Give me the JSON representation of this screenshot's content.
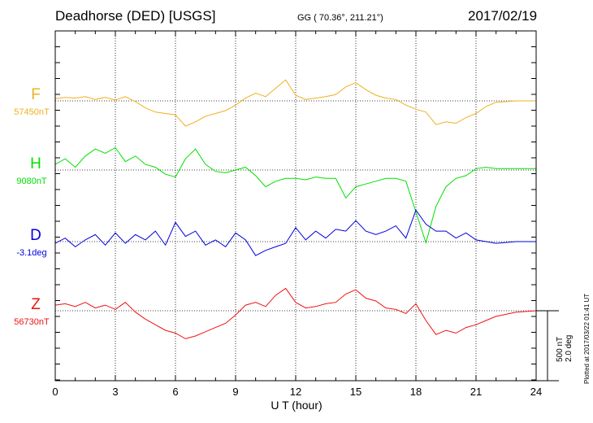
{
  "header": {
    "station": "Deadhorse (DED)  [USGS]",
    "coords": "GG ( 70.36°, 211.21°)",
    "date": "2017/02/19"
  },
  "footer": {
    "scale_nt": "500 nT",
    "scale_deg": "2.0 deg",
    "plotted": "Plotted at 2017/03/22 01:41 UT"
  },
  "chart_data": {
    "type": "line",
    "xlabel": "U T (hour)",
    "xlim": [
      0,
      24
    ],
    "xticks": [
      0,
      3,
      6,
      9,
      12,
      15,
      18,
      21,
      24
    ],
    "grid": true,
    "panels": [
      {
        "name": "F",
        "baseline": "57450nT",
        "color": "#f0b020",
        "x": [
          0,
          0.5,
          1,
          1.5,
          2,
          2.5,
          3,
          3.5,
          4,
          4.5,
          5,
          5.5,
          6,
          6.5,
          7,
          7.5,
          8,
          8.5,
          9,
          9.5,
          10,
          10.5,
          11,
          11.5,
          12,
          12.5,
          13,
          13.5,
          14,
          14.5,
          15,
          15.5,
          16,
          16.5,
          17,
          17.5,
          18,
          18.5,
          19,
          19.5,
          20,
          20.5,
          21,
          21.5,
          22,
          23,
          24
        ],
        "values": [
          15,
          25,
          20,
          30,
          10,
          25,
          5,
          30,
          -5,
          -50,
          -80,
          -90,
          -100,
          -180,
          -150,
          -110,
          -90,
          -70,
          -30,
          20,
          55,
          30,
          90,
          150,
          40,
          10,
          20,
          30,
          45,
          100,
          130,
          80,
          40,
          20,
          10,
          -30,
          -60,
          -80,
          -170,
          -150,
          -160,
          -120,
          -90,
          -40,
          -10,
          0,
          0
        ]
      },
      {
        "name": "H",
        "baseline": "9080nT",
        "color": "#00e000",
        "x": [
          0,
          0.5,
          1,
          1.5,
          2,
          2.5,
          3,
          3.5,
          4,
          4.5,
          5,
          5.5,
          6,
          6.5,
          7,
          7.5,
          8,
          8.5,
          9,
          9.5,
          10,
          10.5,
          11,
          11.5,
          12,
          12.5,
          13,
          13.5,
          14,
          14.5,
          15,
          15.5,
          16,
          16.5,
          17,
          17.5,
          18,
          18.5,
          19,
          19.5,
          20,
          20.5,
          21,
          21.5,
          22,
          23,
          24
        ],
        "values": [
          40,
          80,
          20,
          100,
          150,
          120,
          160,
          60,
          100,
          40,
          20,
          -30,
          -50,
          80,
          150,
          40,
          -10,
          -20,
          0,
          20,
          -40,
          -120,
          -80,
          -60,
          -60,
          -70,
          -50,
          -60,
          -60,
          -200,
          -120,
          -100,
          -80,
          -60,
          -60,
          -80,
          -300,
          -520,
          -260,
          -120,
          -60,
          -40,
          10,
          20,
          10,
          10,
          10
        ]
      },
      {
        "name": "D",
        "baseline": "-3.1deg",
        "color": "#0000dd",
        "x": [
          0,
          0.5,
          1,
          1.5,
          2,
          2.5,
          3,
          3.5,
          4,
          4.5,
          5,
          5.5,
          6,
          6.5,
          7,
          7.5,
          8,
          8.5,
          9,
          9.5,
          10,
          10.5,
          11,
          11.5,
          12,
          12.5,
          13,
          13.5,
          14,
          14.5,
          15,
          15.5,
          16,
          16.5,
          17,
          17.5,
          18,
          18.5,
          19,
          19.5,
          20,
          20.5,
          21,
          21.5,
          22,
          23,
          24
        ],
        "values": [
          -0.05,
          0.1,
          -0.15,
          0.05,
          0.2,
          -0.1,
          0.25,
          -0.05,
          0.2,
          0.05,
          0.3,
          -0.1,
          0.55,
          0.15,
          0.3,
          -0.1,
          0.05,
          -0.15,
          0.25,
          0.05,
          -0.4,
          -0.25,
          -0.15,
          -0.05,
          0.4,
          0.05,
          0.3,
          0.1,
          0.35,
          0.3,
          0.6,
          0.3,
          0.2,
          0.3,
          0.45,
          0.1,
          0.9,
          0.5,
          0.3,
          0.3,
          0.1,
          0.25,
          0.05,
          0.0,
          -0.05,
          0.0,
          0.0
        ]
      },
      {
        "name": "Z",
        "baseline": "56730nT",
        "color": "#ee1111",
        "x": [
          0,
          0.5,
          1,
          1.5,
          2,
          2.5,
          3,
          3.5,
          4,
          4.5,
          5,
          5.5,
          6,
          6.5,
          7,
          7.5,
          8,
          8.5,
          9,
          9.5,
          10,
          10.5,
          11,
          11.5,
          12,
          12.5,
          13,
          13.5,
          14,
          14.5,
          15,
          15.5,
          16,
          16.5,
          17,
          17.5,
          18,
          18.5,
          19,
          19.5,
          20,
          20.5,
          21,
          21.5,
          22,
          23,
          24
        ],
        "values": [
          40,
          50,
          30,
          60,
          20,
          40,
          10,
          60,
          -10,
          -60,
          -100,
          -140,
          -160,
          -200,
          -180,
          -150,
          -120,
          -90,
          -30,
          40,
          60,
          30,
          110,
          160,
          60,
          20,
          30,
          50,
          60,
          120,
          150,
          90,
          70,
          20,
          10,
          -20,
          50,
          -70,
          -170,
          -140,
          -160,
          -120,
          -100,
          -70,
          -40,
          -10,
          0
        ]
      }
    ]
  }
}
